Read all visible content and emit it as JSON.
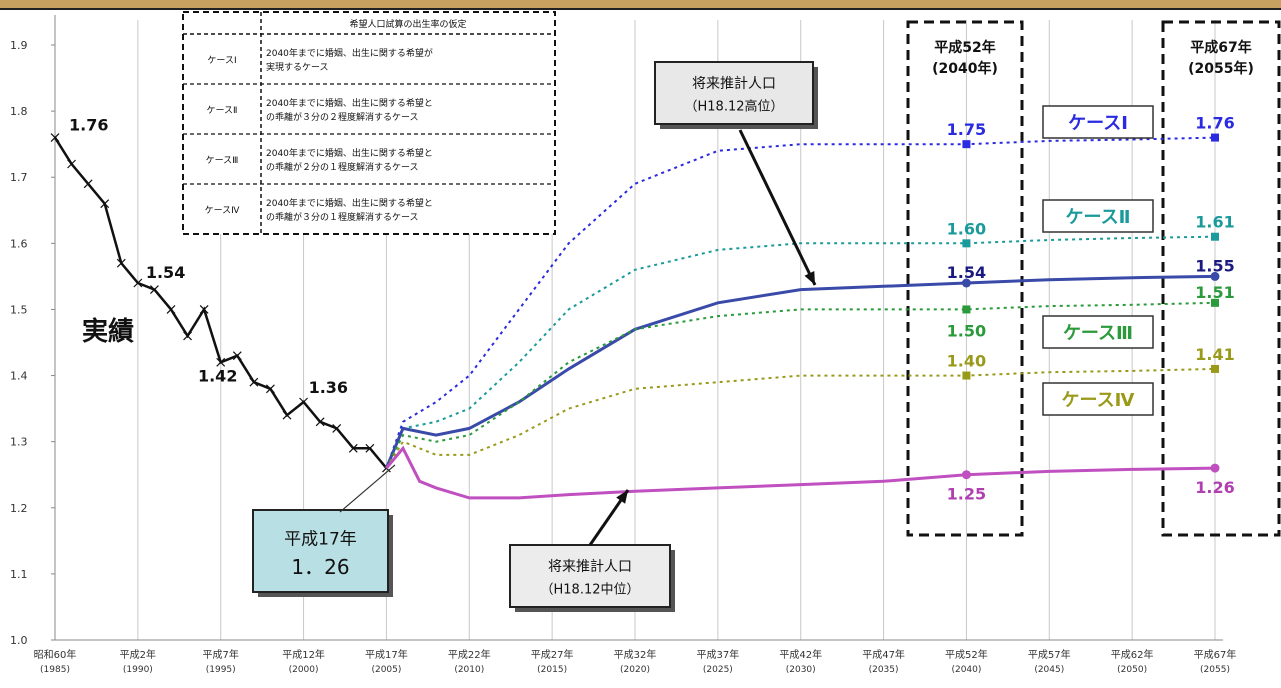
{
  "chart_data": {
    "type": "line",
    "ylim": [
      1.0,
      1.9
    ],
    "yticks": [
      "1.0",
      "1.1",
      "1.2",
      "1.3",
      "1.4",
      "1.5",
      "1.6",
      "1.7",
      "1.8",
      "1.9"
    ],
    "xticks": [
      {
        "year": 1985,
        "era": "昭和60年",
        "ad": "(1985)"
      },
      {
        "year": 1990,
        "era": "平成2年",
        "ad": "(1990)"
      },
      {
        "year": 1995,
        "era": "平成7年",
        "ad": "(1995)"
      },
      {
        "year": 2000,
        "era": "平成12年",
        "ad": "(2000)"
      },
      {
        "year": 2005,
        "era": "平成17年",
        "ad": "(2005)"
      },
      {
        "year": 2010,
        "era": "平成22年",
        "ad": "(2010)"
      },
      {
        "year": 2015,
        "era": "平成27年",
        "ad": "(2015)"
      },
      {
        "year": 2020,
        "era": "平成32年",
        "ad": "(2020)"
      },
      {
        "year": 2025,
        "era": "平成37年",
        "ad": "(2025)"
      },
      {
        "year": 2030,
        "era": "平成42年",
        "ad": "(2030)"
      },
      {
        "year": 2035,
        "era": "平成47年",
        "ad": "(2035)"
      },
      {
        "year": 2040,
        "era": "平成52年",
        "ad": "(2040)"
      },
      {
        "year": 2045,
        "era": "平成57年",
        "ad": "(2045)"
      },
      {
        "year": 2050,
        "era": "平成62年",
        "ad": "(2050)"
      },
      {
        "year": 2055,
        "era": "平成67年",
        "ad": "(2055)"
      }
    ],
    "actual_label": "実績",
    "series": [
      {
        "name": "実績",
        "style": "actual",
        "color": "#111111",
        "x": [
          1985,
          1986,
          1987,
          1988,
          1989,
          1990,
          1991,
          1992,
          1993,
          1994,
          1995,
          1996,
          1997,
          1998,
          1999,
          2000,
          2001,
          2002,
          2003,
          2004,
          2005
        ],
        "y": [
          1.76,
          1.72,
          1.69,
          1.66,
          1.57,
          1.54,
          1.53,
          1.5,
          1.46,
          1.5,
          1.42,
          1.43,
          1.39,
          1.38,
          1.34,
          1.36,
          1.33,
          1.32,
          1.29,
          1.29,
          1.26
        ]
      },
      {
        "name": "ケースⅠ",
        "style": "dotted",
        "color": "#2a2ae0",
        "x": [
          2005,
          2006,
          2008,
          2010,
          2013,
          2016,
          2020,
          2025,
          2030,
          2035,
          2040,
          2045,
          2050,
          2055
        ],
        "y": [
          1.26,
          1.33,
          1.36,
          1.4,
          1.5,
          1.6,
          1.69,
          1.74,
          1.75,
          1.75,
          1.75,
          1.755,
          1.757,
          1.76
        ]
      },
      {
        "name": "ケースⅡ",
        "style": "dotted",
        "color": "#1a9a9a",
        "x": [
          2005,
          2006,
          2008,
          2010,
          2013,
          2016,
          2020,
          2025,
          2030,
          2035,
          2040,
          2045,
          2050,
          2055
        ],
        "y": [
          1.26,
          1.32,
          1.33,
          1.35,
          1.42,
          1.5,
          1.56,
          1.59,
          1.6,
          1.6,
          1.6,
          1.605,
          1.608,
          1.61
        ]
      },
      {
        "name": "将来推計人口(H18.12高位)",
        "style": "solid",
        "color": "#3a4aa8",
        "x": [
          2005,
          2006,
          2008,
          2010,
          2013,
          2016,
          2020,
          2025,
          2030,
          2035,
          2040,
          2045,
          2050,
          2055
        ],
        "y": [
          1.26,
          1.32,
          1.31,
          1.32,
          1.36,
          1.41,
          1.47,
          1.51,
          1.53,
          1.535,
          1.54,
          1.545,
          1.548,
          1.55
        ]
      },
      {
        "name": "ケースⅢ",
        "style": "dotted",
        "color": "#2a9a3a",
        "x": [
          2005,
          2006,
          2008,
          2010,
          2013,
          2016,
          2020,
          2025,
          2030,
          2035,
          2040,
          2045,
          2050,
          2055
        ],
        "y": [
          1.26,
          1.31,
          1.3,
          1.31,
          1.36,
          1.42,
          1.47,
          1.49,
          1.5,
          1.5,
          1.5,
          1.505,
          1.507,
          1.51
        ]
      },
      {
        "name": "ケースⅣ",
        "style": "dotted",
        "color": "#9a9a1a",
        "x": [
          2005,
          2006,
          2008,
          2010,
          2013,
          2016,
          2020,
          2025,
          2030,
          2035,
          2040,
          2045,
          2050,
          2055
        ],
        "y": [
          1.26,
          1.3,
          1.28,
          1.28,
          1.31,
          1.35,
          1.38,
          1.39,
          1.4,
          1.4,
          1.4,
          1.405,
          1.407,
          1.41
        ]
      },
      {
        "name": "将来推計人口(H18.12中位)",
        "style": "solid",
        "color": "#c050c0",
        "x": [
          2005,
          2006,
          2007,
          2008,
          2010,
          2013,
          2016,
          2020,
          2025,
          2030,
          2035,
          2040,
          2045,
          2050,
          2055
        ],
        "y": [
          1.26,
          1.29,
          1.24,
          1.23,
          1.215,
          1.215,
          1.22,
          1.225,
          1.23,
          1.235,
          1.24,
          1.25,
          1.255,
          1.258,
          1.26
        ]
      }
    ],
    "data_labels": [
      {
        "text": "1.76",
        "x": 1985,
        "y": 1.76,
        "color": "#111111"
      },
      {
        "text": "1.54",
        "x": 1990,
        "y": 1.54,
        "color": "#111111"
      },
      {
        "text": "1.42",
        "x": 1995,
        "y": 1.42,
        "color": "#111111"
      },
      {
        "text": "1.36",
        "x": 2000,
        "y": 1.36,
        "color": "#111111"
      },
      {
        "text": "1.75",
        "x": 2040,
        "y": 1.75,
        "color": "#2a2ae0"
      },
      {
        "text": "1.60",
        "x": 2040,
        "y": 1.6,
        "color": "#1a9a9a"
      },
      {
        "text": "1.54",
        "x": 2040,
        "y": 1.54,
        "color": "#1a1a80"
      },
      {
        "text": "1.50",
        "x": 2040,
        "y": 1.5,
        "color": "#2a9a3a"
      },
      {
        "text": "1.40",
        "x": 2040,
        "y": 1.4,
        "color": "#9a9a1a"
      },
      {
        "text": "1.25",
        "x": 2040,
        "y": 1.25,
        "color": "#b040b0"
      },
      {
        "text": "1.76",
        "x": 2055,
        "y": 1.76,
        "color": "#2a2ae0"
      },
      {
        "text": "1.61",
        "x": 2055,
        "y": 1.61,
        "color": "#1a9a9a"
      },
      {
        "text": "1.55",
        "x": 2055,
        "y": 1.55,
        "color": "#1a1a80"
      },
      {
        "text": "1.51",
        "x": 2055,
        "y": 1.51,
        "color": "#2a9a3a"
      },
      {
        "text": "1.41",
        "x": 2055,
        "y": 1.41,
        "color": "#9a9a1a"
      },
      {
        "text": "1.26",
        "x": 2055,
        "y": 1.26,
        "color": "#b040b0"
      }
    ],
    "case_labels": [
      {
        "text": "ケースⅠ",
        "color": "#2a2ae0"
      },
      {
        "text": "ケースⅡ",
        "color": "#1a9a9a"
      },
      {
        "text": "ケースⅢ",
        "color": "#2a9a3a"
      },
      {
        "text": "ケースⅣ",
        "color": "#9a9a1a"
      }
    ],
    "year_boxes": [
      {
        "line1": "平成52年",
        "line2": "(2040年)"
      },
      {
        "line1": "平成67年",
        "line2": "(2055年)"
      }
    ],
    "callouts": {
      "high": {
        "line1": "将来推計人口",
        "line2": "（H18.12高位）"
      },
      "medium": {
        "line1": "将来推計人口",
        "line2": "（H18.12中位）"
      },
      "base": {
        "line1": "平成17年",
        "line2": "1．26"
      }
    },
    "legend_table": {
      "header": "希望人口試算の出生率の仮定",
      "rows": [
        {
          "case": "ケースⅠ",
          "desc1": "2040年までに婚姻、出生に関する希望が",
          "desc2": "実現するケース"
        },
        {
          "case": "ケースⅡ",
          "desc1": "2040年までに婚姻、出生に関する希望と",
          "desc2": "の乖離が３分の２程度解消するケース"
        },
        {
          "case": "ケースⅢ",
          "desc1": "2040年までに婚姻、出生に関する希望と",
          "desc2": "の乖離が２分の１程度解消するケース"
        },
        {
          "case": "ケースⅣ",
          "desc1": "2040年までに婚姻、出生に関する希望と",
          "desc2": "の乖離が３分の１程度解消するケース"
        }
      ]
    }
  }
}
